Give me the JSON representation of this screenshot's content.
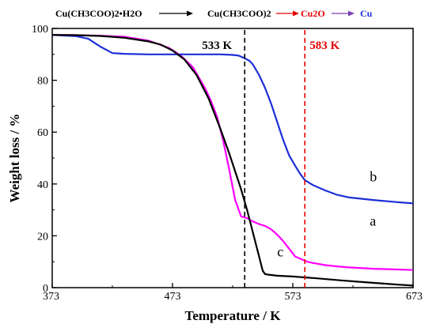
{
  "reaction": {
    "step1": "Cu(CH3COO)2•H2O",
    "step2": "Cu(CH3COO)2",
    "step3": "Cu2O",
    "step4": "Cu"
  },
  "colors": {
    "a": "#ff00ff",
    "b": "#1c2fd6",
    "c": "#000000",
    "marker_533": "#000000",
    "marker_583": "#e60000",
    "arrow1": "#000000",
    "arrow2": "#e60000",
    "arrow3": "#7b3fb5",
    "step3_text": "#e60000",
    "step4_text": "#1c2fd6"
  },
  "chart_data": {
    "type": "line",
    "xlabel": "Temperature / K",
    "ylabel": "Weight loss / %",
    "xlim": [
      373,
      673
    ],
    "ylim": [
      0,
      100
    ],
    "xticks": [
      373,
      473,
      573,
      673
    ],
    "yticks": [
      0,
      20,
      40,
      60,
      80,
      100
    ],
    "grid": false,
    "markers": [
      {
        "x": 533,
        "label": "533 K",
        "color": "#000000"
      },
      {
        "x": 583,
        "label": "583 K",
        "color": "#e60000"
      }
    ],
    "series": [
      {
        "name": "a",
        "color": "#ff00ff",
        "x": [
          373,
          393,
          413,
          433,
          453,
          470,
          480,
          490,
          500,
          505,
          510,
          515,
          520,
          525,
          530,
          535,
          540,
          545,
          550,
          555,
          560,
          565,
          570,
          575,
          580,
          585,
          590,
          600,
          610,
          620,
          640,
          660,
          673
        ],
        "y": [
          97.5,
          97.4,
          97.2,
          96.8,
          95.3,
          92.5,
          89.5,
          85,
          77,
          72,
          66,
          57,
          46,
          34,
          27.5,
          26.8,
          25.5,
          24.5,
          23.8,
          22.5,
          20.5,
          18,
          15,
          12,
          11,
          10,
          9.5,
          8.7,
          8.2,
          7.8,
          7.3,
          7.0,
          6.8
        ]
      },
      {
        "name": "b",
        "color": "#1c2fd6",
        "x": [
          373,
          393,
          403,
          413,
          423,
          433,
          453,
          473,
          493,
          513,
          523,
          528,
          533,
          537,
          540,
          545,
          550,
          555,
          560,
          565,
          570,
          575,
          579,
          583,
          590,
          600,
          610,
          620,
          640,
          660,
          673
        ],
        "y": [
          97.5,
          97,
          96,
          93,
          90.5,
          90.2,
          90,
          90,
          90,
          90,
          89.8,
          89.5,
          88.5,
          87.5,
          86,
          82,
          77,
          71,
          64,
          57,
          51,
          47,
          44,
          41.5,
          39.5,
          37.5,
          35.8,
          34.8,
          33.8,
          33,
          32.5
        ]
      },
      {
        "name": "c",
        "color": "#000000",
        "x": [
          373,
          393,
          413,
          433,
          453,
          463,
          473,
          483,
          493,
          503,
          513,
          520,
          525,
          530,
          535,
          540,
          545,
          548,
          550,
          553,
          560,
          573,
          593,
          613,
          633,
          653,
          673
        ],
        "y": [
          97.5,
          97.4,
          97.1,
          96.4,
          95,
          93.8,
          91.5,
          88,
          82,
          73,
          61,
          52,
          45,
          38,
          30,
          21,
          12,
          6.5,
          5.2,
          5.0,
          4.6,
          4.3,
          3.6,
          2.8,
          2.1,
          1.4,
          0.8
        ]
      }
    ],
    "curve_labels": [
      {
        "text": "a",
        "series": "a"
      },
      {
        "text": "b",
        "series": "b"
      },
      {
        "text": "c",
        "series": "c"
      }
    ]
  }
}
